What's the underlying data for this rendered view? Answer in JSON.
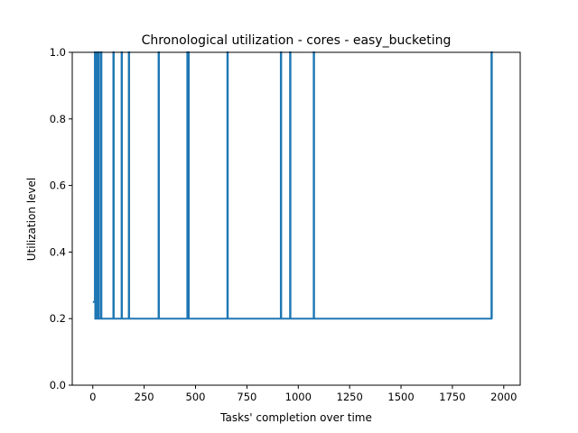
{
  "chart_data": {
    "type": "line",
    "title": "Chronological utilization - cores - easy_bucketing",
    "xlabel": "Tasks' completion over time",
    "ylabel": "Utilization level",
    "xlim": [
      -100,
      2080
    ],
    "ylim": [
      0,
      1
    ],
    "xticks": [
      0,
      250,
      500,
      750,
      1000,
      1250,
      1500,
      1750,
      2000
    ],
    "xtick_labels": [
      "0",
      "250",
      "500",
      "750",
      "1000",
      "1250",
      "1500",
      "1750",
      "2000"
    ],
    "yticks": [
      0.0,
      0.2,
      0.4,
      0.6,
      0.8,
      1.0
    ],
    "ytick_labels": [
      "0.0",
      "0.2",
      "0.4",
      "0.6",
      "0.8",
      "1.0"
    ],
    "grid": false,
    "legend": null,
    "series": [
      {
        "color": "#1f77b4",
        "x": [
          0,
          10,
          10,
          12,
          12,
          15,
          15,
          20,
          20,
          25,
          25,
          30,
          30,
          40,
          40,
          42,
          42,
          100,
          100,
          102,
          102,
          140,
          140,
          142,
          142,
          175,
          175,
          177,
          177,
          320,
          320,
          322,
          322,
          460,
          460,
          462,
          462,
          465,
          465,
          467,
          467,
          655,
          655,
          657,
          657,
          915,
          915,
          917,
          917,
          960,
          960,
          962,
          962,
          1075,
          1075,
          1077,
          1077,
          1940,
          1940,
          1942,
          1942
        ],
        "y": [
          0.25,
          0.25,
          1.0,
          1.0,
          0.2,
          0.2,
          1.0,
          1.0,
          0.2,
          0.2,
          1.0,
          1.0,
          0.2,
          0.2,
          1.0,
          1.0,
          0.2,
          0.2,
          1.0,
          1.0,
          0.2,
          0.2,
          1.0,
          1.0,
          0.2,
          0.2,
          1.0,
          1.0,
          0.2,
          0.2,
          1.0,
          1.0,
          0.2,
          0.2,
          1.0,
          1.0,
          0.2,
          0.2,
          1.0,
          1.0,
          0.2,
          0.2,
          1.0,
          1.0,
          0.2,
          0.2,
          1.0,
          1.0,
          0.2,
          0.2,
          1.0,
          1.0,
          0.2,
          0.2,
          1.0,
          1.0,
          0.2,
          0.2,
          1.0,
          1.0,
          0.2
        ]
      }
    ]
  }
}
